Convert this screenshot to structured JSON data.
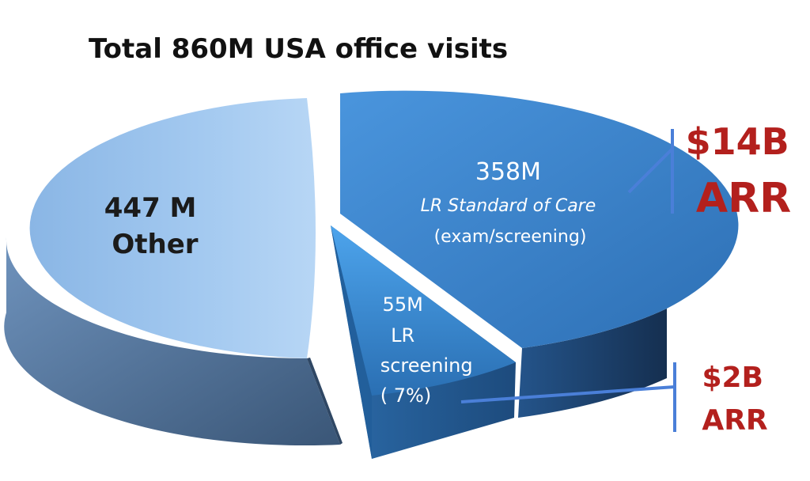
{
  "chart_data": {
    "type": "pie",
    "title": "Total 860M USA office visits",
    "slices": [
      {
        "value": 447,
        "label_lines": [
          "447 M",
          "Other"
        ],
        "color": "#9cc3ec"
      },
      {
        "value": 358,
        "label_lines": [
          "358M",
          "LR Standard of Care",
          "(exam/screening)"
        ],
        "color": "#3d86cf"
      },
      {
        "value": 55,
        "label_lines": [
          "55M",
          "LR",
          "screening",
          "( 7%)"
        ],
        "color": "#2f79c2"
      }
    ],
    "annotations": [
      {
        "lines": [
          "$14B",
          "ARR"
        ],
        "color": "#b3201d"
      },
      {
        "lines": [
          "$2B",
          "ARR"
        ],
        "color": "#b3201d"
      }
    ],
    "leader_color": "#4a7fd8"
  }
}
